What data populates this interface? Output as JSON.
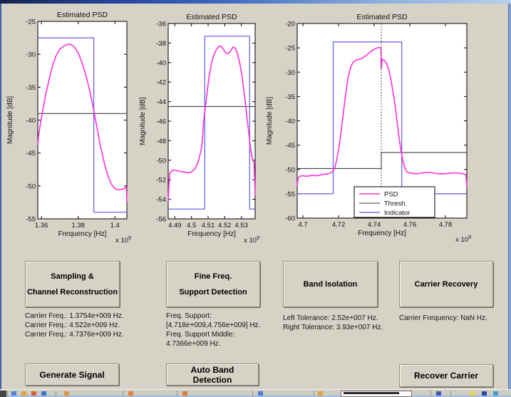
{
  "figure": {
    "background_color": "#d6d2c6",
    "titlebar_gradient": [
      "#16224f",
      "#b7cdeb"
    ],
    "border_color": "#7e9fd4"
  },
  "chart_data": [
    {
      "type": "line",
      "title": "Estimated PSD",
      "xlabel": "Frequency [Hz]",
      "ylabel": "Magnitude [dB]",
      "offset_label": {
        "base": "x 10",
        "exp": "9"
      },
      "xlim": [
        1.358,
        1.4065
      ],
      "ylim": [
        -55,
        -25
      ],
      "xticks": [
        1.36,
        1.38,
        1.4
      ],
      "xtick_labels": [
        "1.36",
        "1.38",
        "1.4"
      ],
      "yticks": [
        -25,
        -30,
        -35,
        -40,
        -45,
        -50,
        -55
      ],
      "grid": false,
      "series": [
        {
          "name": "PSD",
          "color": "#ff2fd8",
          "width": 1.6,
          "points": [
            [
              1.358,
              -43.8
            ],
            [
              1.3585,
              -42.2
            ],
            [
              1.36,
              -39.6
            ],
            [
              1.362,
              -36.6
            ],
            [
              1.364,
              -34.0
            ],
            [
              1.366,
              -31.8
            ],
            [
              1.368,
              -30.2
            ],
            [
              1.37,
              -29.2
            ],
            [
              1.372,
              -28.8
            ],
            [
              1.374,
              -28.5
            ],
            [
              1.376,
              -28.5
            ],
            [
              1.378,
              -28.9
            ],
            [
              1.38,
              -29.8
            ],
            [
              1.382,
              -31.2
            ],
            [
              1.384,
              -33.0
            ],
            [
              1.386,
              -35.2
            ],
            [
              1.388,
              -37.8
            ],
            [
              1.39,
              -40.8
            ],
            [
              1.392,
              -43.8
            ],
            [
              1.394,
              -46.3
            ],
            [
              1.396,
              -48.3
            ],
            [
              1.398,
              -49.7
            ],
            [
              1.4,
              -50.4
            ],
            [
              1.402,
              -50.6
            ],
            [
              1.404,
              -50.5
            ],
            [
              1.4055,
              -50.3
            ],
            [
              1.4062,
              -50.2
            ],
            [
              1.4065,
              -52.5
            ]
          ]
        },
        {
          "name": "Thresh.",
          "color": "#3f3f3f",
          "width": 1.1,
          "points": [
            [
              1.358,
              -39
            ],
            [
              1.4065,
              -39
            ]
          ]
        },
        {
          "name": "Indicator",
          "color": "#5a5ae8",
          "width": 1.2,
          "points": [
            [
              1.358,
              -27.5
            ],
            [
              1.3885,
              -27.5
            ],
            [
              1.3885,
              -54
            ],
            [
              1.4065,
              -54
            ]
          ]
        }
      ]
    },
    {
      "type": "line",
      "title": "Estimated PSD",
      "xlabel": "Frequency [Hz]",
      "ylabel": "Magnitude [dB]",
      "offset_label": {
        "base": "x 10",
        "exp": "9"
      },
      "xlim": [
        4.486,
        4.5383
      ],
      "ylim": [
        -56,
        -36
      ],
      "xticks": [
        4.49,
        4.5,
        4.51,
        4.52,
        4.53
      ],
      "xtick_labels": [
        "4.49",
        "4.5",
        "4.51",
        "4.52",
        "4.53"
      ],
      "yticks": [
        -36,
        -38,
        -40,
        -42,
        -44,
        -46,
        -48,
        -50,
        -52,
        -54,
        -56
      ],
      "grid": false,
      "series": [
        {
          "name": "PSD",
          "color": "#ff2fd8",
          "width": 1.6,
          "points": [
            [
              4.486,
              -54.3
            ],
            [
              4.4865,
              -52.3
            ],
            [
              4.487,
              -51.3
            ],
            [
              4.489,
              -51.0
            ],
            [
              4.492,
              -51.1
            ],
            [
              4.495,
              -51.2
            ],
            [
              4.498,
              -51.3
            ],
            [
              4.5,
              -51.2
            ],
            [
              4.502,
              -50.9
            ],
            [
              4.504,
              -50.2
            ],
            [
              4.506,
              -48.8
            ],
            [
              4.5068,
              -47.5
            ],
            [
              4.5072,
              -46.2
            ],
            [
              4.508,
              -45.0
            ],
            [
              4.509,
              -43.6
            ],
            [
              4.51,
              -42.2
            ],
            [
              4.511,
              -41.0
            ],
            [
              4.512,
              -40.1
            ],
            [
              4.513,
              -39.4
            ],
            [
              4.5145,
              -38.8
            ],
            [
              4.516,
              -38.4
            ],
            [
              4.5175,
              -38.3
            ],
            [
              4.519,
              -38.6
            ],
            [
              4.5205,
              -39.0
            ],
            [
              4.522,
              -39.1
            ],
            [
              4.5235,
              -38.8
            ],
            [
              4.525,
              -38.4
            ],
            [
              4.5262,
              -38.5
            ],
            [
              4.5275,
              -39.0
            ],
            [
              4.529,
              -40.0
            ],
            [
              4.5305,
              -41.5
            ],
            [
              4.532,
              -43.5
            ],
            [
              4.5335,
              -45.8
            ],
            [
              4.535,
              -48.0
            ],
            [
              4.536,
              -49.3
            ],
            [
              4.5368,
              -50.0
            ],
            [
              4.5376,
              -50.2
            ],
            [
              4.5383,
              -53.6
            ]
          ]
        },
        {
          "name": "Thresh.",
          "color": "#3f3f3f",
          "width": 1.1,
          "points": [
            [
              4.486,
              -44.5
            ],
            [
              4.5383,
              -44.5
            ]
          ]
        },
        {
          "name": "Indicator",
          "color": "#5a5ae8",
          "width": 1.2,
          "points": [
            [
              4.486,
              -55
            ],
            [
              4.508,
              -55
            ],
            [
              4.508,
              -37.3
            ],
            [
              4.535,
              -37.3
            ],
            [
              4.535,
              -55
            ],
            [
              4.5383,
              -55
            ]
          ]
        }
      ]
    },
    {
      "type": "line",
      "title": "Estimated PSD",
      "xlabel": "Frequency [Hz]",
      "ylabel": "Magnitude [dB]",
      "offset_label": {
        "base": "x 10",
        "exp": "9"
      },
      "xlim": [
        4.6968,
        4.792
      ],
      "ylim": [
        -60,
        -20
      ],
      "xticks": [
        4.7,
        4.72,
        4.74,
        4.76,
        4.78
      ],
      "xtick_labels": [
        "4.7",
        "4.72",
        "4.74",
        "4.76",
        "4.78"
      ],
      "yticks": [
        -20,
        -25,
        -30,
        -35,
        -40,
        -45,
        -50,
        -55,
        -60
      ],
      "grid": false,
      "vline": {
        "x": 4.744,
        "style": "dotted",
        "color": "#222222"
      },
      "legend": {
        "position": "south",
        "entries": [
          "PSD",
          "Thresh.",
          "Indicator"
        ]
      },
      "series": [
        {
          "name": "PSD",
          "color": "#ff2fd8",
          "width": 1.6,
          "points": [
            [
              4.6968,
              -53.5
            ],
            [
              4.6972,
              -52.0
            ],
            [
              4.698,
              -51.4
            ],
            [
              4.7,
              -51.3
            ],
            [
              4.702,
              -51.4
            ],
            [
              4.704,
              -51.3
            ],
            [
              4.706,
              -51.2
            ],
            [
              4.708,
              -51.3
            ],
            [
              4.71,
              -51.1
            ],
            [
              4.712,
              -51.0
            ],
            [
              4.714,
              -50.9
            ],
            [
              4.7155,
              -50.7
            ],
            [
              4.717,
              -50.3
            ],
            [
              4.718,
              -49.5
            ],
            [
              4.719,
              -48.0
            ],
            [
              4.72,
              -46.0
            ],
            [
              4.721,
              -43.5
            ],
            [
              4.722,
              -40.5
            ],
            [
              4.723,
              -37.5
            ],
            [
              4.724,
              -34.5
            ],
            [
              4.725,
              -32.0
            ],
            [
              4.726,
              -30.0
            ],
            [
              4.727,
              -28.8
            ],
            [
              4.728,
              -28.1
            ],
            [
              4.729,
              -27.7
            ],
            [
              4.73,
              -27.5
            ],
            [
              4.731,
              -27.4
            ],
            [
              4.732,
              -27.3
            ],
            [
              4.733,
              -27.2
            ],
            [
              4.734,
              -27.0
            ],
            [
              4.735,
              -26.7
            ],
            [
              4.736,
              -26.4
            ],
            [
              4.737,
              -26.1
            ],
            [
              4.738,
              -25.8
            ],
            [
              4.739,
              -25.5
            ],
            [
              4.74,
              -25.3
            ],
            [
              4.741,
              -25.1
            ],
            [
              4.742,
              -25.0
            ],
            [
              4.743,
              -24.9
            ],
            [
              4.7438,
              -25.1
            ],
            [
              4.744,
              -29.3
            ],
            [
              4.7445,
              -27.4
            ],
            [
              4.745,
              -27.4
            ],
            [
              4.746,
              -27.7
            ],
            [
              4.747,
              -28.2
            ],
            [
              4.748,
              -29.2
            ],
            [
              4.749,
              -30.8
            ],
            [
              4.75,
              -32.8
            ],
            [
              4.751,
              -35.0
            ],
            [
              4.752,
              -37.5
            ],
            [
              4.753,
              -40.5
            ],
            [
              4.754,
              -43.5
            ],
            [
              4.755,
              -46.0
            ],
            [
              4.756,
              -48.0
            ],
            [
              4.757,
              -49.5
            ],
            [
              4.758,
              -50.3
            ],
            [
              4.759,
              -50.6
            ],
            [
              4.761,
              -50.8
            ],
            [
              4.764,
              -50.9
            ],
            [
              4.767,
              -50.7
            ],
            [
              4.77,
              -50.6
            ],
            [
              4.773,
              -50.7
            ],
            [
              4.776,
              -50.9
            ],
            [
              4.779,
              -50.9
            ],
            [
              4.782,
              -50.8
            ],
            [
              4.785,
              -50.7
            ],
            [
              4.788,
              -50.8
            ],
            [
              4.7905,
              -50.9
            ],
            [
              4.7915,
              -51.1
            ],
            [
              4.792,
              -53.8
            ]
          ]
        },
        {
          "name": "Thresh.",
          "color": "#3f3f3f",
          "width": 1.1,
          "points": [
            [
              4.6968,
              -49.8
            ],
            [
              4.744,
              -49.8
            ],
            [
              4.744,
              -46.5
            ],
            [
              4.792,
              -46.5
            ]
          ]
        },
        {
          "name": "Indicator",
          "color": "#5a5ae8",
          "width": 1.2,
          "points": [
            [
              4.6968,
              -55
            ],
            [
              4.717,
              -55
            ],
            [
              4.717,
              -23.8
            ],
            [
              4.7555,
              -23.8
            ],
            [
              4.7555,
              -55
            ],
            [
              4.792,
              -55
            ]
          ]
        }
      ]
    }
  ],
  "panels": [
    {
      "button_label_lines": [
        "Sampling &",
        "Channel Reconstruction"
      ],
      "info_lines": [
        "Carrier Freq.: 1.3754e+009 Hz.",
        "Carrier Freq.: 4.522e+009 Hz.",
        "Carrier Freq.: 4.7376e+009 Hz."
      ]
    },
    {
      "button_label_lines": [
        "Fine Freq.",
        "Support Detection"
      ],
      "info_lines": [
        "Freq. Support:",
        "[4.718e+009,4.756e+009] Hz.",
        "Freq. Support Middle:",
        "4.7366e+009 Hz."
      ]
    },
    {
      "button_label_lines": [
        "Band Isolation"
      ],
      "info_lines": [
        "Left Tolerance: 2.52e+007 Hz.",
        "Right Tolerance: 3.93e+007 Hz."
      ]
    },
    {
      "button_label_lines": [
        "Carrier Recovery"
      ],
      "info_lines": [
        "Carrier Frequency: NaN Hz."
      ]
    }
  ],
  "bottom_buttons": [
    "Generate Signal",
    "Auto Band Detection",
    "Recover Carrier"
  ],
  "taskbar": {
    "icon_colors": [
      "#4a86d4",
      "#e8a23a",
      "#d4622a",
      "#3a76cc",
      "#e8953a",
      "#e8813a",
      "#d87a2e",
      "#4a7ed0",
      "#e8a23a",
      "#3a5cb0",
      "#e8d44a",
      "#2a4ca0",
      "#3aa0c8"
    ]
  }
}
